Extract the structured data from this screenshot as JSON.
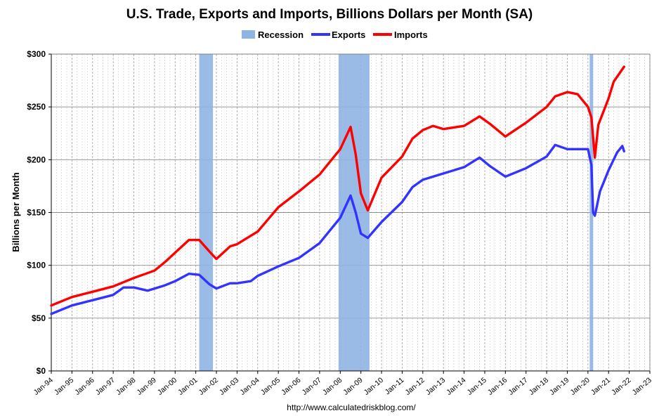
{
  "chart_data": {
    "type": "line",
    "title": "U.S. Trade, Exports and Imports, Billions Dollars per Month (SA)",
    "ylabel": "Billions per Month",
    "source": "http://www.calculatedriskblog.com/",
    "ylim": [
      0,
      300
    ],
    "xlim": [
      "1994-01",
      "2023-01"
    ],
    "y_ticks": [
      0,
      50,
      100,
      150,
      200,
      250,
      300
    ],
    "y_tick_labels": [
      "$0",
      "$50",
      "$100",
      "$150",
      "$200",
      "$250",
      "$300"
    ],
    "x_tick_labels": [
      "Jan-94",
      "Jan-95",
      "Jan-96",
      "Jan-97",
      "Jan-98",
      "Jan-99",
      "Jan-00",
      "Jan-01",
      "Jan-02",
      "Jan-03",
      "Jan-04",
      "Jan-05",
      "Jan-06",
      "Jan-07",
      "Jan-08",
      "Jan-09",
      "Jan-10",
      "Jan-11",
      "Jan-12",
      "Jan-13",
      "Jan-14",
      "Jan-15",
      "Jan-16",
      "Jan-17",
      "Jan-18",
      "Jan-19",
      "Jan-20",
      "Jan-21",
      "Jan-22",
      "Jan-23"
    ],
    "grid": true,
    "legend_position": "top-center",
    "legend": [
      "Recession",
      "Exports",
      "Imports"
    ],
    "recessions": [
      {
        "start": "2001-03",
        "end": "2001-11"
      },
      {
        "start": "2007-12",
        "end": "2009-06"
      },
      {
        "start": "2020-02",
        "end": "2020-04"
      }
    ],
    "series": [
      {
        "name": "Exports",
        "color": "#3333ff",
        "points": [
          [
            "1994-01",
            54
          ],
          [
            "1995-01",
            62
          ],
          [
            "1996-01",
            67
          ],
          [
            "1997-01",
            72
          ],
          [
            "1997-07",
            79
          ],
          [
            "1998-01",
            79
          ],
          [
            "1998-09",
            76
          ],
          [
            "1999-01",
            78
          ],
          [
            "1999-07",
            81
          ],
          [
            "2000-01",
            85
          ],
          [
            "2000-09",
            92
          ],
          [
            "2001-03",
            91
          ],
          [
            "2001-09",
            82
          ],
          [
            "2002-01",
            78
          ],
          [
            "2002-09",
            83
          ],
          [
            "2003-01",
            83
          ],
          [
            "2003-09",
            85
          ],
          [
            "2004-01",
            90
          ],
          [
            "2005-01",
            99
          ],
          [
            "2006-01",
            107
          ],
          [
            "2007-01",
            121
          ],
          [
            "2008-01",
            145
          ],
          [
            "2008-07",
            166
          ],
          [
            "2008-10",
            150
          ],
          [
            "2009-01",
            130
          ],
          [
            "2009-05",
            126
          ],
          [
            "2010-01",
            141
          ],
          [
            "2011-01",
            160
          ],
          [
            "2011-07",
            174
          ],
          [
            "2012-01",
            181
          ],
          [
            "2013-01",
            187
          ],
          [
            "2014-01",
            193
          ],
          [
            "2014-10",
            202
          ],
          [
            "2015-04",
            194
          ],
          [
            "2016-01",
            184
          ],
          [
            "2017-01",
            192
          ],
          [
            "2018-01",
            203
          ],
          [
            "2018-06",
            214
          ],
          [
            "2019-01",
            210
          ],
          [
            "2020-01",
            210
          ],
          [
            "2020-03",
            195
          ],
          [
            "2020-04",
            150
          ],
          [
            "2020-05",
            147
          ],
          [
            "2020-08",
            170
          ],
          [
            "2021-01",
            190
          ],
          [
            "2021-06",
            207
          ],
          [
            "2021-09",
            213
          ],
          [
            "2021-10",
            208
          ]
        ]
      },
      {
        "name": "Imports",
        "color": "#ff0000",
        "points": [
          [
            "1994-01",
            62
          ],
          [
            "1995-01",
            70
          ],
          [
            "1996-01",
            75
          ],
          [
            "1997-01",
            80
          ],
          [
            "1998-01",
            88
          ],
          [
            "1999-01",
            95
          ],
          [
            "1999-07",
            103
          ],
          [
            "2000-01",
            112
          ],
          [
            "2000-09",
            124
          ],
          [
            "2001-03",
            124
          ],
          [
            "2001-09",
            113
          ],
          [
            "2002-01",
            106
          ],
          [
            "2002-09",
            118
          ],
          [
            "2003-01",
            120
          ],
          [
            "2004-01",
            132
          ],
          [
            "2005-01",
            155
          ],
          [
            "2006-01",
            170
          ],
          [
            "2007-01",
            186
          ],
          [
            "2007-07",
            198
          ],
          [
            "2008-01",
            210
          ],
          [
            "2008-07",
            231
          ],
          [
            "2008-10",
            205
          ],
          [
            "2009-01",
            168
          ],
          [
            "2009-05",
            152
          ],
          [
            "2010-01",
            183
          ],
          [
            "2011-01",
            203
          ],
          [
            "2011-07",
            220
          ],
          [
            "2012-01",
            228
          ],
          [
            "2012-07",
            232
          ],
          [
            "2013-01",
            229
          ],
          [
            "2014-01",
            232
          ],
          [
            "2014-10",
            241
          ],
          [
            "2015-04",
            234
          ],
          [
            "2016-01",
            222
          ],
          [
            "2017-01",
            235
          ],
          [
            "2018-01",
            250
          ],
          [
            "2018-06",
            260
          ],
          [
            "2019-01",
            264
          ],
          [
            "2019-07",
            262
          ],
          [
            "2020-01",
            250
          ],
          [
            "2020-03",
            240
          ],
          [
            "2020-05",
            202
          ],
          [
            "2020-07",
            233
          ],
          [
            "2021-01",
            258
          ],
          [
            "2021-04",
            274
          ],
          [
            "2021-10",
            288
          ]
        ]
      }
    ]
  }
}
